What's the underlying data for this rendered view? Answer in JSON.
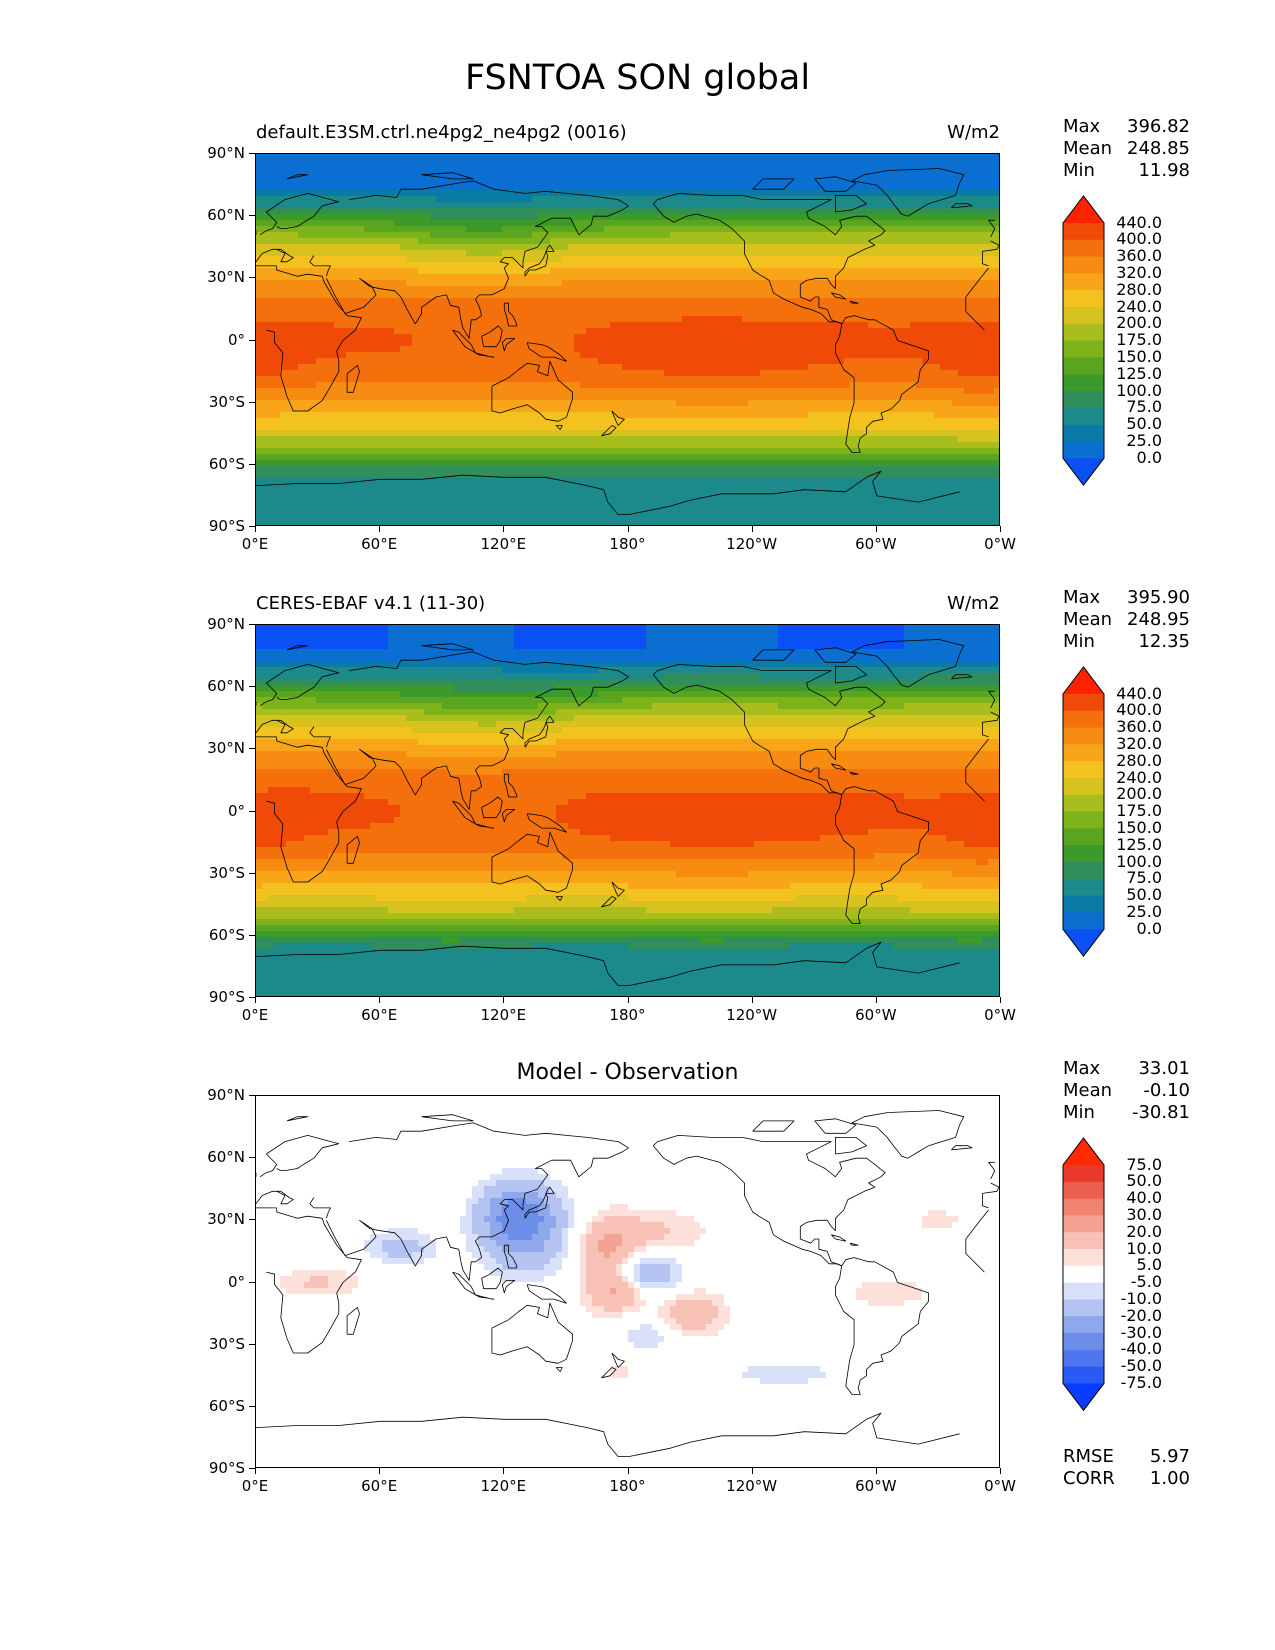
{
  "figure": {
    "title": "FSNTOA SON global"
  },
  "panels": [
    {
      "id": "model",
      "title_left": "default.E3SM.ctrl.ne4pg2_ne4pg2 (0016)",
      "title_right": "W/m2",
      "title_center": "",
      "stats": {
        "max_label": "Max",
        "max": "396.82",
        "mean_label": "Mean",
        "mean": "248.85",
        "min_label": "Min",
        "min": "11.98"
      },
      "colorbar": [
        "440.0",
        "400.0",
        "360.0",
        "320.0",
        "280.0",
        "240.0",
        "200.0",
        "175.0",
        "150.0",
        "125.0",
        "100.0",
        "75.0",
        "50.0",
        "25.0",
        "0.0"
      ]
    },
    {
      "id": "obs",
      "title_left": "CERES-EBAF v4.1 (11-30)",
      "title_right": "W/m2",
      "title_center": "",
      "stats": {
        "max_label": "Max",
        "max": "395.90",
        "mean_label": "Mean",
        "mean": "248.95",
        "min_label": "Min",
        "min": "12.35"
      },
      "colorbar": [
        "440.0",
        "400.0",
        "360.0",
        "320.0",
        "280.0",
        "240.0",
        "200.0",
        "175.0",
        "150.0",
        "125.0",
        "100.0",
        "75.0",
        "50.0",
        "25.0",
        "0.0"
      ]
    },
    {
      "id": "diff",
      "title_left": "",
      "title_right": "",
      "title_center": "Model - Observation",
      "stats": {
        "max_label": "Max",
        "max": "33.01",
        "mean_label": "Mean",
        "mean": "-0.10",
        "min_label": "Min",
        "min": "-30.81"
      },
      "colorbar": [
        "75.0",
        "50.0",
        "40.0",
        "30.0",
        "20.0",
        "10.0",
        "5.0",
        "-5.0",
        "-10.0",
        "-20.0",
        "-30.0",
        "-40.0",
        "-50.0",
        "-75.0"
      ],
      "metrics": {
        "rmse_label": "RMSE",
        "rmse": "5.97",
        "corr_label": "CORR",
        "corr": "1.00"
      }
    }
  ],
  "axes": {
    "y_ticks": [
      "90°N",
      "60°N",
      "30°N",
      "0°",
      "30°S",
      "60°S",
      "90°S"
    ],
    "x_ticks": [
      "0°E",
      "60°E",
      "120°E",
      "180°",
      "120°W",
      "60°W",
      "0°W"
    ]
  },
  "chart_data": {
    "type": "heatmap",
    "variable": "FSNTOA",
    "season": "SON",
    "region": "global",
    "units": "W/m2",
    "x_range": [
      0,
      360
    ],
    "y_range": [
      -90,
      90
    ],
    "field_levels": [
      0,
      25,
      50,
      75,
      100,
      125,
      150,
      175,
      200,
      240,
      280,
      320,
      360,
      400,
      440
    ],
    "diff_levels": [
      -75,
      -50,
      -40,
      -30,
      -20,
      -10,
      -5,
      5,
      10,
      20,
      30,
      40,
      50,
      75
    ],
    "field_colors": [
      "#0a50f5",
      "#0a6fd0",
      "#0a7aa6",
      "#1c8a8a",
      "#2f8e5a",
      "#3b9a2a",
      "#5aa51f",
      "#7cb21a",
      "#a8be1c",
      "#d7c21f",
      "#f4c21e",
      "#f8a51a",
      "#f68c12",
      "#f4700c",
      "#ef4a08",
      "#ff2200"
    ],
    "diff_colors": [
      "#0a3cff",
      "#2a5af5",
      "#4d76ef",
      "#6c8ee8",
      "#8fa8ec",
      "#b4c3f2",
      "#d8e0fa",
      "#ffffff",
      "#fde0da",
      "#f8c1b6",
      "#f4a293",
      "#f08270",
      "#ec5f4e",
      "#e8392c",
      "#ff2a00"
    ],
    "panels": [
      {
        "name": "default.E3SM.ctrl.ne4pg2_ne4pg2 (0016)",
        "max": 396.82,
        "mean": 248.85,
        "min": 11.98
      },
      {
        "name": "CERES-EBAF v4.1 (11-30)",
        "max": 395.9,
        "mean": 248.95,
        "min": 12.35
      },
      {
        "name": "Model - Observation",
        "max": 33.01,
        "mean": -0.1,
        "min": -30.81,
        "rmse": 5.97,
        "corr": 1.0
      }
    ]
  }
}
